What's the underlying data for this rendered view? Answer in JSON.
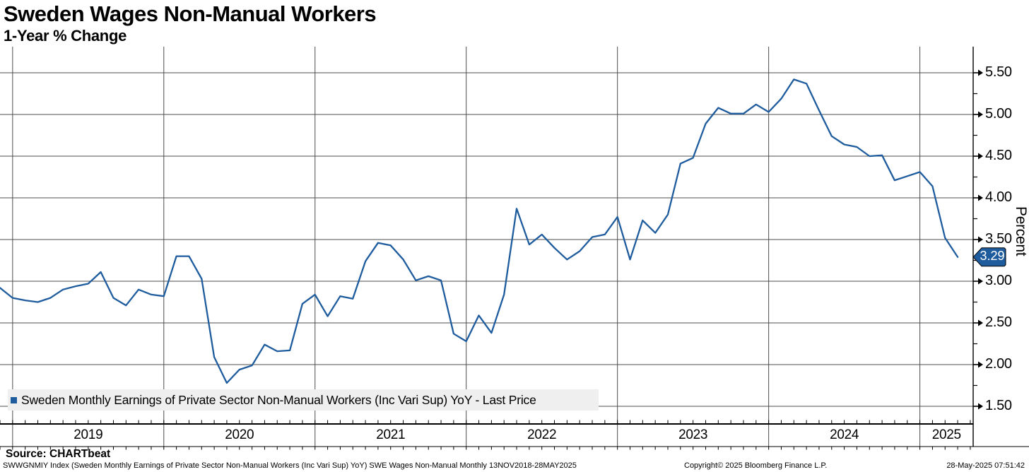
{
  "header": {
    "title": "Sweden Wages Non-Manual Workers",
    "subtitle": "1-Year % Change"
  },
  "legend": {
    "label": "Sweden Monthly Earnings of Private Sector Non-Manual Workers (Inc Vari Sup) YoY - Last Price"
  },
  "axes": {
    "y_title": "Percent",
    "y_ticks": [
      "5.50",
      "5.00",
      "4.50",
      "4.00",
      "3.50",
      "3.00",
      "2.50",
      "2.00",
      "1.50"
    ],
    "x_ticks": [
      "2019",
      "2020",
      "2021",
      "2022",
      "2023",
      "2024",
      "2025"
    ]
  },
  "footer": {
    "source": "Source: CHARTbeat",
    "ticker_line": "SWWGNMIY Index (Sweden Monthly Earnings of Private Sector Non-Manual Workers (Inc Vari Sup) YoY) SWE Wages Non-Manual  Monthly 13NOV2018-28MAY2025",
    "copyright": "Copyright© 2025 Bloomberg Finance L.P.",
    "timestamp": "28-May-2025 07:51:42"
  },
  "colors": {
    "line": "#1e5c9e",
    "badge": "#1e5c9e",
    "grid": "#4d4d4d",
    "axis": "#000000",
    "legend_bg": "#efefef",
    "badge_text": "#ffffff"
  },
  "chart_data": {
    "type": "line",
    "title": "Sweden Wages Non-Manual Workers — 1-Year % Change",
    "ylabel": "Percent",
    "ylim": [
      1.25,
      5.75
    ],
    "y_gridlines": [
      5.5,
      5.0,
      4.5,
      4.0,
      3.5,
      3.0,
      2.5,
      2.0,
      1.5
    ],
    "x_range_label": "13NOV2018-28MAY2025",
    "grid": true,
    "legend_position": "bottom-left",
    "last_price": 3.29,
    "last_price_label": "3.29",
    "series_name": "Sweden Monthly Earnings of Private Sector Non-Manual Workers (Inc Vari Sup) YoY",
    "x": [
      "Dec-18",
      "Jan-19",
      "Feb-19",
      "Mar-19",
      "Apr-19",
      "May-19",
      "Jun-19",
      "Jul-19",
      "Aug-19",
      "Sep-19",
      "Oct-19",
      "Nov-19",
      "Dec-19",
      "Jan-20",
      "Feb-20",
      "Mar-20",
      "Apr-20",
      "May-20",
      "Jun-20",
      "Jul-20",
      "Aug-20",
      "Sep-20",
      "Oct-20",
      "Nov-20",
      "Dec-20",
      "Jan-21",
      "Feb-21",
      "Mar-21",
      "Apr-21",
      "May-21",
      "Jun-21",
      "Jul-21",
      "Aug-21",
      "Sep-21",
      "Oct-21",
      "Nov-21",
      "Dec-21",
      "Jan-22",
      "Feb-22",
      "Mar-22",
      "Apr-22",
      "May-22",
      "Jun-22",
      "Jul-22",
      "Aug-22",
      "Sep-22",
      "Oct-22",
      "Nov-22",
      "Dec-22",
      "Jan-23",
      "Feb-23",
      "Mar-23",
      "Apr-23",
      "May-23",
      "Jun-23",
      "Jul-23",
      "Aug-23",
      "Sep-23",
      "Oct-23",
      "Nov-23",
      "Dec-23",
      "Jan-24",
      "Feb-24",
      "Mar-24",
      "Apr-24",
      "May-24",
      "Jun-24",
      "Jul-24",
      "Aug-24",
      "Sep-24",
      "Oct-24",
      "Nov-24",
      "Dec-24",
      "Jan-25",
      "Feb-25",
      "Mar-25",
      "Apr-25"
    ],
    "values": [
      2.92,
      2.8,
      2.77,
      2.75,
      2.8,
      2.9,
      2.94,
      2.97,
      3.11,
      2.8,
      2.71,
      2.9,
      2.84,
      2.82,
      3.3,
      3.3,
      3.03,
      2.09,
      1.78,
      1.94,
      1.99,
      2.24,
      2.16,
      2.17,
      2.73,
      2.84,
      2.58,
      2.82,
      2.79,
      3.24,
      3.46,
      3.43,
      3.26,
      3.01,
      3.06,
      3.01,
      2.37,
      2.28,
      2.59,
      2.38,
      2.84,
      3.87,
      3.44,
      3.56,
      3.4,
      3.26,
      3.36,
      3.53,
      3.56,
      3.77,
      3.26,
      3.73,
      3.58,
      3.8,
      4.41,
      4.48,
      4.89,
      5.08,
      5.01,
      5.01,
      5.12,
      5.03,
      5.19,
      5.42,
      5.37,
      5.05,
      4.74,
      4.64,
      4.61,
      4.5,
      4.51,
      4.21,
      4.26,
      4.31,
      4.14,
      3.52,
      3.29
    ]
  }
}
